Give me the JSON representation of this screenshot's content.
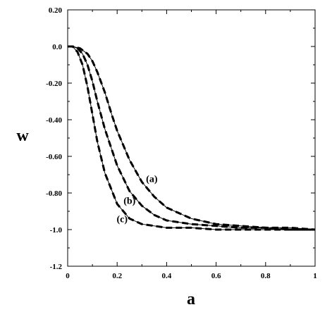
{
  "chart_data": {
    "type": "line",
    "xlabel": "a",
    "ylabel": "w",
    "xlim": [
      0,
      1
    ],
    "ylim": [
      -1.2,
      0.2
    ],
    "x_ticks": [
      "0",
      "0.2",
      "0.4",
      "0.6",
      "0.8",
      "1"
    ],
    "y_ticks": [
      "0.20",
      "0.0",
      "-0.20",
      "-0.40",
      "-0.60",
      "-0.80",
      "-1.0",
      "-1.2"
    ],
    "grid": false,
    "series": [
      {
        "name": "(a)",
        "x": [
          0,
          0.02,
          0.05,
          0.08,
          0.1,
          0.12,
          0.15,
          0.18,
          0.2,
          0.25,
          0.3,
          0.35,
          0.4,
          0.5,
          0.6,
          0.7,
          0.8,
          0.9,
          1.0
        ],
        "y": [
          0.0,
          0.0,
          -0.01,
          -0.04,
          -0.08,
          -0.14,
          -0.25,
          -0.38,
          -0.46,
          -0.62,
          -0.74,
          -0.82,
          -0.88,
          -0.94,
          -0.97,
          -0.98,
          -0.99,
          -0.99,
          -1.0
        ]
      },
      {
        "name": "(b)",
        "x": [
          0,
          0.02,
          0.04,
          0.06,
          0.08,
          0.1,
          0.12,
          0.15,
          0.2,
          0.25,
          0.3,
          0.35,
          0.4,
          0.5,
          0.6,
          0.7,
          0.8,
          0.9,
          1.0
        ],
        "y": [
          0.0,
          0.0,
          -0.01,
          -0.04,
          -0.1,
          -0.19,
          -0.3,
          -0.45,
          -0.65,
          -0.79,
          -0.87,
          -0.92,
          -0.95,
          -0.97,
          -0.98,
          -0.99,
          -0.99,
          -1.0,
          -1.0
        ]
      },
      {
        "name": "(c)",
        "x": [
          0,
          0.02,
          0.04,
          0.06,
          0.08,
          0.1,
          0.12,
          0.15,
          0.2,
          0.25,
          0.3,
          0.4,
          0.5,
          0.6,
          0.7,
          0.8,
          0.9,
          1.0
        ],
        "y": [
          0.0,
          0.0,
          -0.03,
          -0.1,
          -0.22,
          -0.37,
          -0.52,
          -0.69,
          -0.86,
          -0.94,
          -0.97,
          -0.99,
          -0.99,
          -1.0,
          -1.0,
          -1.0,
          -1.0,
          -1.0
        ]
      }
    ],
    "annotations": [
      {
        "text": "(a)",
        "x": 0.34,
        "y": -0.74
      },
      {
        "text": "(b)",
        "x": 0.25,
        "y": -0.86
      },
      {
        "text": "(c)",
        "x": 0.22,
        "y": -0.96
      }
    ]
  }
}
